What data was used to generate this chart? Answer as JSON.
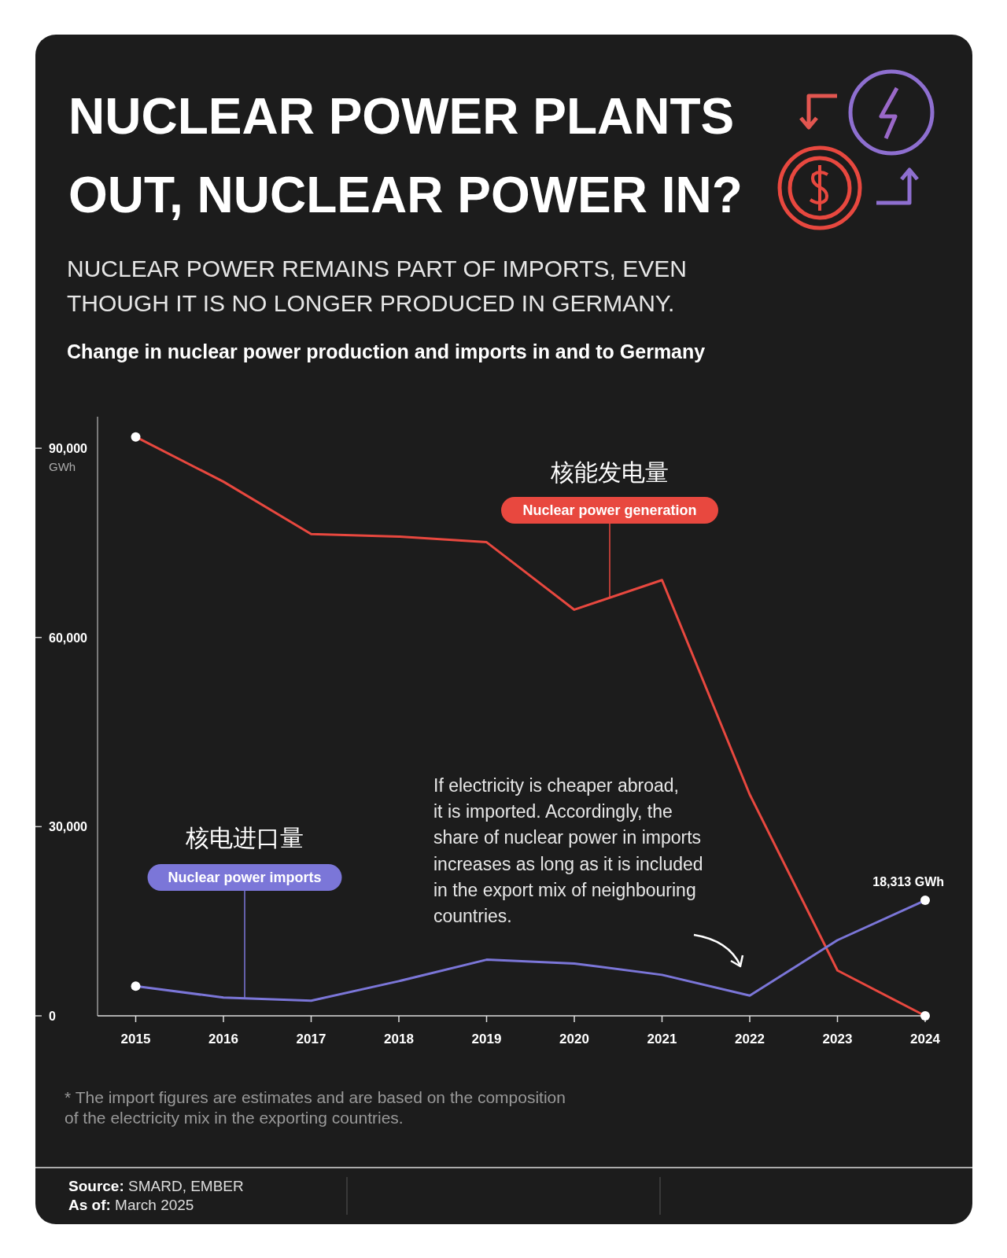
{
  "chart_data": {
    "type": "line",
    "title": "NUCLEAR POWER PLANTS\nOUT, NUCLEAR POWER IN?",
    "subtitle": "NUCLEAR POWER REMAINS PART OF IMPORTS, EVEN\nTHOUGH IT IS NO LONGER PRODUCED IN GERMANY.",
    "ylabel": "GWh",
    "categories": [
      "2015",
      "2016",
      "2017",
      "2018",
      "2019",
      "2020",
      "2021",
      "2022",
      "2023",
      "2024"
    ],
    "ylim": [
      0,
      95000
    ],
    "yticks": [
      0,
      {
        "value": 30000,
        "label": "30,000"
      },
      {
        "value": 60000,
        "label": "60,000"
      },
      {
        "value": 90000,
        "label": "90,000"
      }
    ],
    "series": [
      {
        "name": "Nuclear power generation",
        "color": "#e8483f",
        "values": [
          91800,
          84700,
          76400,
          76000,
          75100,
          64400,
          69100,
          35100,
          7200,
          0
        ]
      },
      {
        "name": "Nuclear power imports",
        "color": "#7b76d8",
        "values": [
          4700,
          2900,
          2400,
          5500,
          8900,
          8300,
          6500,
          3200,
          12000,
          18313
        ],
        "value_labels": [
          null,
          null,
          null,
          null,
          null,
          null,
          null,
          null,
          null,
          "18,313 GWh"
        ]
      }
    ],
    "annotations": [
      "Change in nuclear power production and imports in and to Germany",
      "核能发电量",
      "核电进口量",
      "If electricity is cheaper abroad,\nit is imported. Accordingly, the\nshare of nuclear power in imports\nincreases as long as it is included\nin the export mix of neighbouring\ncountries.",
      "* The import figures are estimates and are based on the composition\nof the electricity mix in the exporting countries.",
      "Source: SMARD, EMBER",
      "As of: March 2025"
    ]
  }
}
